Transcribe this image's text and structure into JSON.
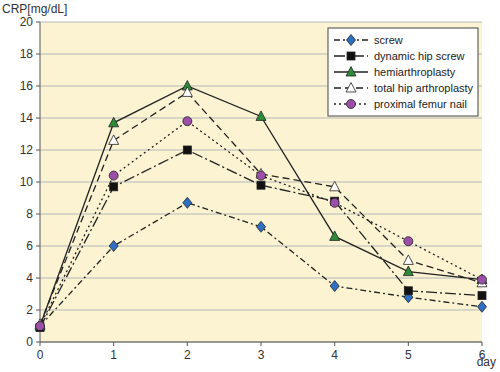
{
  "chart_data": {
    "type": "line",
    "y_label": "CRP[mg/dL]",
    "x_label": "day",
    "x": [
      0,
      1,
      2,
      3,
      4,
      5,
      6
    ],
    "xlim": [
      0,
      6
    ],
    "xticks": [
      0,
      1,
      2,
      3,
      4,
      5,
      6
    ],
    "ylim": [
      0,
      20
    ],
    "yticks": [
      0,
      2,
      4,
      6,
      8,
      10,
      12,
      14,
      16,
      18,
      20
    ],
    "grid": true,
    "legend": "top-right",
    "series": [
      {
        "name": "screw",
        "color": "#2f6fc4",
        "marker": "diamond",
        "line_style": "dash-dot",
        "values": [
          1.0,
          6.0,
          8.7,
          7.2,
          3.5,
          2.8,
          2.2
        ]
      },
      {
        "name": "dynamic hip screw",
        "color": "#111111",
        "marker": "square",
        "line_style": "long-dash-dot",
        "values": [
          0.9,
          9.7,
          12.0,
          9.8,
          8.8,
          3.2,
          2.9
        ]
      },
      {
        "name": "hemiarthroplasty",
        "color": "#2e8b3a",
        "marker": "triangle",
        "line_style": "solid",
        "values": [
          1.0,
          13.7,
          16.0,
          14.1,
          6.6,
          4.4,
          3.9
        ]
      },
      {
        "name": "total hip arthroplasty",
        "color": "#ffffff",
        "marker": "triangle",
        "line_style": "dashed",
        "values": [
          1.1,
          12.6,
          15.6,
          10.5,
          9.7,
          5.1,
          3.7
        ]
      },
      {
        "name": "proximal femur nail",
        "color": "#9b4fa8",
        "marker": "circle",
        "line_style": "dotted",
        "values": [
          1.0,
          10.4,
          13.8,
          10.4,
          8.7,
          6.3,
          3.9
        ]
      }
    ]
  }
}
